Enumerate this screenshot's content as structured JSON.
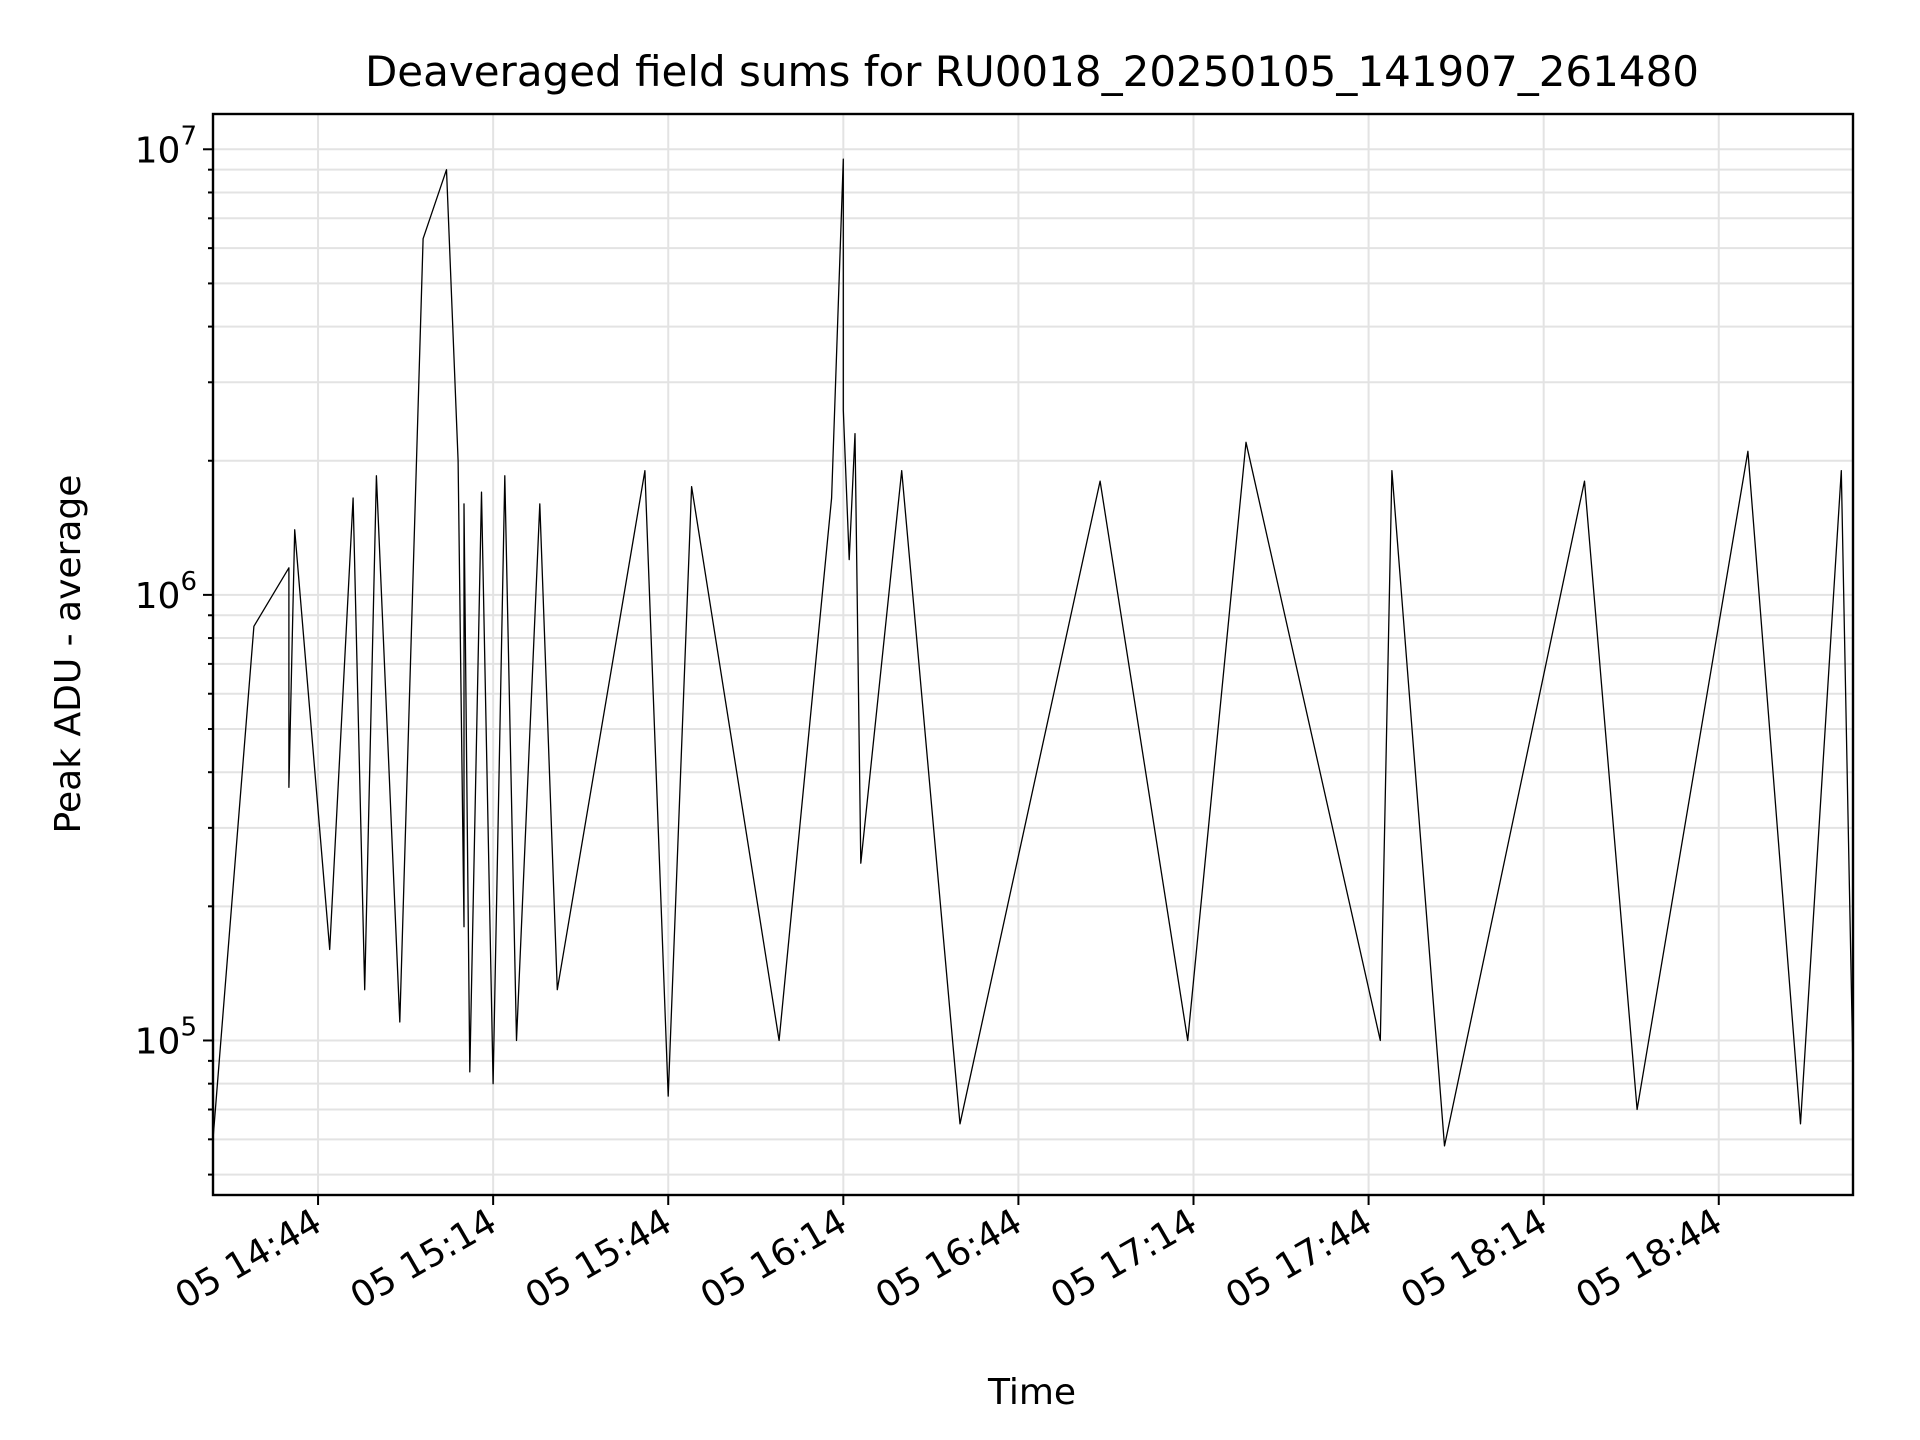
{
  "chart_data": {
    "type": "line",
    "title": "Deaveraged field sums for RU0018_20250105_141907_261480",
    "xlabel": "Time",
    "ylabel": "Peak ADU - average",
    "yscale": "log",
    "ylim": [
      45000,
      12000000
    ],
    "xlim": [
      "2025-01-05 14:26",
      "2025-01-05 19:07"
    ],
    "x_tick_labels": [
      "05 14:44",
      "05 15:14",
      "05 15:44",
      "05 16:14",
      "05 16:44",
      "05 17:14",
      "05 17:44",
      "05 18:14",
      "05 18:44"
    ],
    "x_tick_times": [
      "2025-01-05 14:44",
      "2025-01-05 15:14",
      "2025-01-05 15:44",
      "2025-01-05 16:14",
      "2025-01-05 16:44",
      "2025-01-05 17:14",
      "2025-01-05 17:44",
      "2025-01-05 18:14",
      "2025-01-05 18:44"
    ],
    "y_ticks": [
      {
        "base": "10",
        "exp": "5",
        "value": 100000
      },
      {
        "base": "10",
        "exp": "6",
        "value": 1000000
      },
      {
        "base": "10",
        "exp": "7",
        "value": 10000000
      }
    ],
    "grid": true,
    "line_color": "#000000",
    "series": [
      {
        "x": [
          "2025-01-05 14:26",
          "2025-01-05 14:33",
          "2025-01-05 14:39",
          "2025-01-05 14:39",
          "2025-01-05 14:40",
          "2025-01-05 14:46",
          "2025-01-05 14:50",
          "2025-01-05 14:52",
          "2025-01-05 14:54",
          "2025-01-05 14:58",
          "2025-01-05 15:02",
          "2025-01-05 15:06",
          "2025-01-05 15:08",
          "2025-01-05 15:09",
          "2025-01-05 15:09",
          "2025-01-05 15:10",
          "2025-01-05 15:12",
          "2025-01-05 15:14",
          "2025-01-05 15:16",
          "2025-01-05 15:18",
          "2025-01-05 15:22",
          "2025-01-05 15:25",
          "2025-01-05 15:40",
          "2025-01-05 15:44",
          "2025-01-05 15:48",
          "2025-01-05 16:03",
          "2025-01-05 16:12",
          "2025-01-05 16:14",
          "2025-01-05 16:14",
          "2025-01-05 16:15",
          "2025-01-05 16:16",
          "2025-01-05 16:17",
          "2025-01-05 16:24",
          "2025-01-05 16:34",
          "2025-01-05 16:58",
          "2025-01-05 17:13",
          "2025-01-05 17:23",
          "2025-01-05 17:46",
          "2025-01-05 17:48",
          "2025-01-05 17:57",
          "2025-01-05 18:21",
          "2025-01-05 18:30",
          "2025-01-05 18:49",
          "2025-01-05 18:58",
          "2025-01-05 19:05",
          "2025-01-05 19:07"
        ],
        "values": [
          60000,
          850000,
          1150000,
          370000,
          1400000,
          160000,
          1650000,
          130000,
          1850000,
          110000,
          6300000,
          9000000,
          2000000,
          180000,
          1600000,
          85000,
          1700000,
          80000,
          1850000,
          100000,
          1600000,
          130000,
          1900000,
          75000,
          1750000,
          100000,
          1650000,
          9500000,
          2600000,
          1200000,
          2300000,
          250000,
          1900000,
          65000,
          1800000,
          100000,
          2200000,
          100000,
          1900000,
          58000,
          1800000,
          70000,
          2100000,
          65000,
          1900000,
          85000
        ]
      }
    ]
  }
}
